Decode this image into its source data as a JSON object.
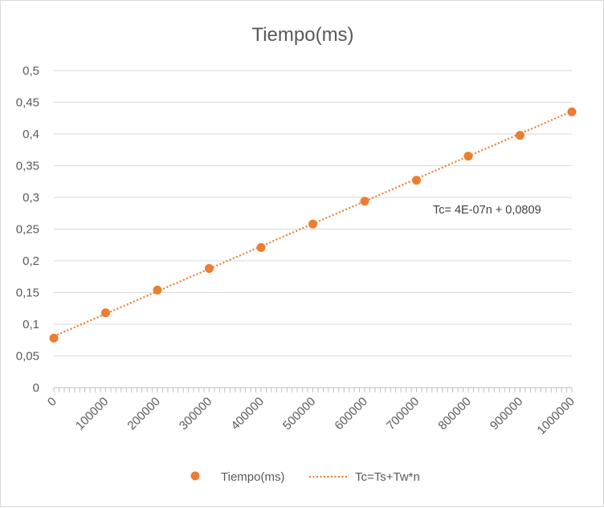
{
  "chart_data": {
    "type": "scatter",
    "title": "Tiempo(ms)",
    "xlabel": "",
    "ylabel": "",
    "xlim": [
      0,
      1000000
    ],
    "ylim": [
      0,
      0.5
    ],
    "x_ticks": [
      0,
      100000,
      200000,
      300000,
      400000,
      500000,
      600000,
      700000,
      800000,
      900000,
      1000000
    ],
    "x_tick_labels": [
      "0",
      "100000",
      "200000",
      "300000",
      "400000",
      "500000",
      "600000",
      "700000",
      "800000",
      "900000",
      "1000000"
    ],
    "y_ticks": [
      0,
      0.05,
      0.1,
      0.15,
      0.2,
      0.25,
      0.3,
      0.35,
      0.4,
      0.45,
      0.5
    ],
    "y_tick_labels": [
      "0",
      "0,05",
      "0,1",
      "0,15",
      "0,2",
      "0,25",
      "0,3",
      "0,35",
      "0,4",
      "0,45",
      "0,5"
    ],
    "grid": true,
    "legend_position": "bottom",
    "series": [
      {
        "name": "Tiempo(ms)",
        "kind": "scatter",
        "color": "#ed7d31",
        "x": [
          0,
          100000,
          200000,
          300000,
          400000,
          500000,
          600000,
          700000,
          800000,
          900000,
          1000000
        ],
        "y": [
          0.078,
          0.118,
          0.154,
          0.188,
          0.221,
          0.258,
          0.294,
          0.327,
          0.365,
          0.398,
          0.435
        ]
      },
      {
        "name": "Tc=Ts+Tw*n",
        "kind": "trendline",
        "color": "#ed7d31",
        "style": "dotted",
        "x": [
          0,
          1000000
        ],
        "y": [
          0.0809,
          0.4359
        ]
      }
    ],
    "annotations": [
      {
        "text": "Tc= 4E-07n + 0,0809"
      }
    ]
  }
}
